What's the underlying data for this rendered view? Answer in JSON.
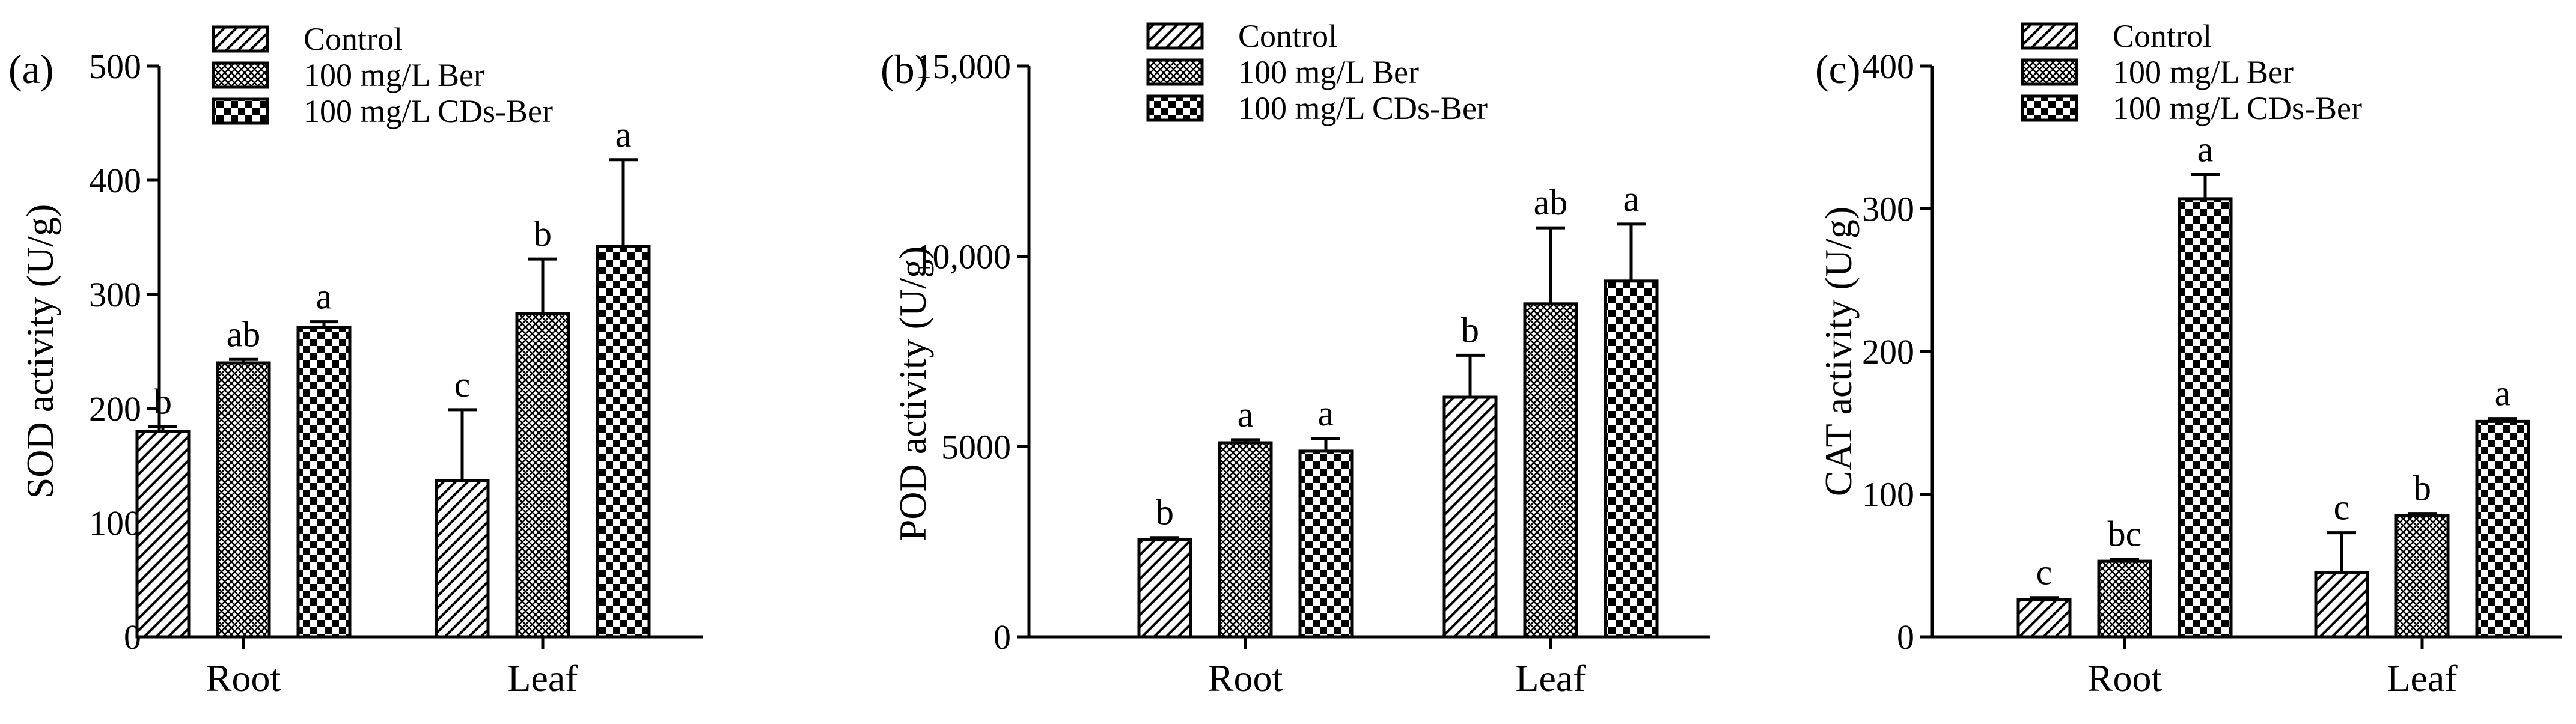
{
  "figure": {
    "legend_labels": [
      "Control",
      "100 mg/L Ber",
      "100 mg/L CDs-Ber"
    ],
    "legend_placement": "top"
  },
  "chart_data": [
    {
      "type": "bar",
      "panel_label": "(a)",
      "ylabel": "SOD activity (U/g)",
      "xlabel": "",
      "categories": [
        "Root",
        "Leaf"
      ],
      "ylim": [
        0,
        500
      ],
      "yticks": [
        0,
        100,
        200,
        300,
        400,
        500
      ],
      "ytick_labels": [
        "0",
        "100",
        "200",
        "300",
        "400",
        "500"
      ],
      "grid": false,
      "series": [
        {
          "name": "Control",
          "values": [
            180,
            137
          ],
          "errors": [
            4,
            62
          ],
          "letters": [
            "b",
            "c"
          ]
        },
        {
          "name": "100 mg/L Ber",
          "values": [
            240,
            283
          ],
          "errors": [
            3,
            48
          ],
          "letters": [
            "ab",
            "b"
          ]
        },
        {
          "name": "100 mg/L CDs-Ber",
          "values": [
            271,
            342
          ],
          "errors": [
            5,
            76
          ],
          "letters": [
            "a",
            "a"
          ]
        }
      ]
    },
    {
      "type": "bar",
      "panel_label": "(b)",
      "ylabel": "POD activity (U/g)",
      "xlabel": "",
      "categories": [
        "Root",
        "Leaf"
      ],
      "ylim": [
        0,
        15000
      ],
      "yticks": [
        0,
        5000,
        10000,
        15000
      ],
      "ytick_labels": [
        "0",
        "5000",
        "10,000",
        "15,000"
      ],
      "grid": false,
      "series": [
        {
          "name": "Control",
          "values": [
            2550,
            6300
          ],
          "errors": [
            60,
            1100
          ],
          "letters": [
            "b",
            "b"
          ]
        },
        {
          "name": "100 mg/L Ber",
          "values": [
            5100,
            8750
          ],
          "errors": [
            80,
            2000
          ],
          "letters": [
            "a",
            "ab"
          ]
        },
        {
          "name": "100 mg/L CDs-Ber",
          "values": [
            4880,
            9350
          ],
          "errors": [
            330,
            1500
          ],
          "letters": [
            "a",
            "a"
          ]
        }
      ]
    },
    {
      "type": "bar",
      "panel_label": "(c)",
      "ylabel": "CAT activity (U/g)",
      "xlabel": "",
      "categories": [
        "Root",
        "Leaf"
      ],
      "ylim": [
        0,
        400
      ],
      "yticks": [
        0,
        100,
        200,
        300,
        400
      ],
      "ytick_labels": [
        "0",
        "100",
        "200",
        "300",
        "400"
      ],
      "grid": false,
      "series": [
        {
          "name": "Control",
          "values": [
            26,
            45
          ],
          "errors": [
            1.5,
            28
          ],
          "letters": [
            "c",
            "c"
          ]
        },
        {
          "name": "100 mg/L Ber",
          "values": [
            53,
            85
          ],
          "errors": [
            1.5,
            1.5
          ],
          "letters": [
            "bc",
            "b"
          ]
        },
        {
          "name": "100 mg/L CDs-Ber",
          "values": [
            307,
            151
          ],
          "errors": [
            17,
            2
          ],
          "letters": [
            "a",
            "a"
          ]
        }
      ]
    }
  ]
}
